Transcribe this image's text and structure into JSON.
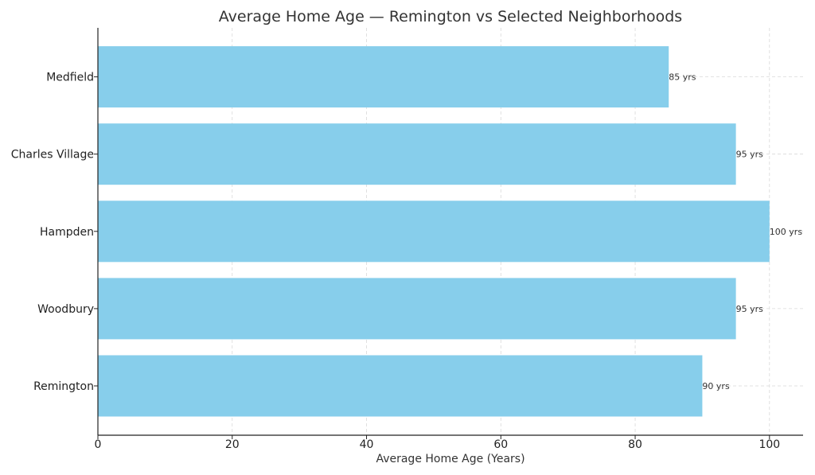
{
  "chart_data": {
    "type": "bar",
    "orientation": "horizontal",
    "title": "Average Home Age — Remington vs Selected Neighborhoods",
    "xlabel": "Average Home Age (Years)",
    "ylabel": "",
    "categories": [
      "Remington",
      "Woodbury",
      "Hampden",
      "Charles Village",
      "Medfield"
    ],
    "values": [
      90,
      95,
      100,
      95,
      85
    ],
    "data_labels": [
      "90 yrs",
      "95 yrs",
      "100 yrs",
      "95 yrs",
      "85 yrs"
    ],
    "xlim": [
      0,
      105
    ],
    "xticks": [
      0,
      20,
      40,
      60,
      80,
      100
    ],
    "grid": true,
    "bar_color": "#87ceeb"
  }
}
